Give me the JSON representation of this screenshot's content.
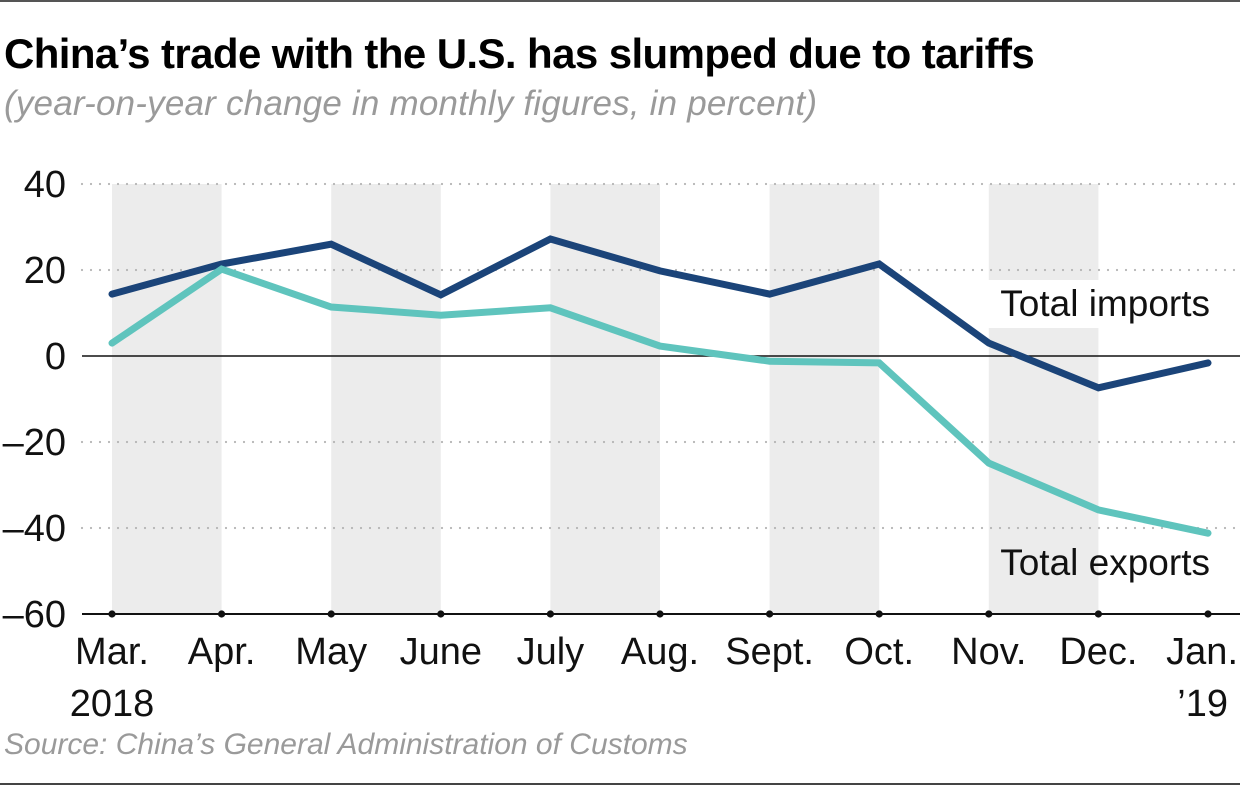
{
  "header": {
    "title": "China’s trade with the U.S. has slumped due to tariffs",
    "subtitle": "(year-on-year change in monthly figures, in percent)"
  },
  "footer": {
    "source": "Source: China’s General Administration of Customs"
  },
  "colors": {
    "imports": "#1b4479",
    "exports": "#5fc4bd",
    "band": "#ececec",
    "grid": "#b5b5b5",
    "axis": "#111111"
  },
  "chart_data": {
    "type": "line",
    "title": "China’s trade with the U.S. has slumped due to tariffs",
    "subtitle": "(year-on-year change in monthly figures, in percent)",
    "xlabel": "",
    "ylabel": "",
    "categories": [
      "Mar.",
      "Apr.",
      "May",
      "June",
      "July",
      "Aug.",
      "Sept.",
      "Oct.",
      "Nov.",
      "Dec.",
      "Jan."
    ],
    "category_sublabels": [
      "2018",
      "",
      "",
      "",
      "",
      "",
      "",
      "",
      "",
      "",
      "’19"
    ],
    "ylim": [
      -60,
      40
    ],
    "yticks": [
      40,
      20,
      0,
      -20,
      -40,
      -60
    ],
    "ytick_labels": [
      "40",
      "20",
      "0",
      "–20",
      "–40",
      "–60"
    ],
    "grid": "horizontal dotted",
    "alternating_bands": true,
    "series": [
      {
        "name": "Total imports",
        "color": "#1b4479",
        "values": [
          14.4,
          21.4,
          26.0,
          14.2,
          27.2,
          19.8,
          14.4,
          21.4,
          3.0,
          -7.4,
          -1.6
        ]
      },
      {
        "name": "Total exports",
        "color": "#5fc4bd",
        "values": [
          3.0,
          20.2,
          11.4,
          9.5,
          11.2,
          2.3,
          -1.2,
          -1.6,
          -24.9,
          -35.8,
          -41.2
        ]
      }
    ],
    "legend": "direct labels at right end of each line",
    "source": "Source: China’s General Administration of Customs"
  }
}
